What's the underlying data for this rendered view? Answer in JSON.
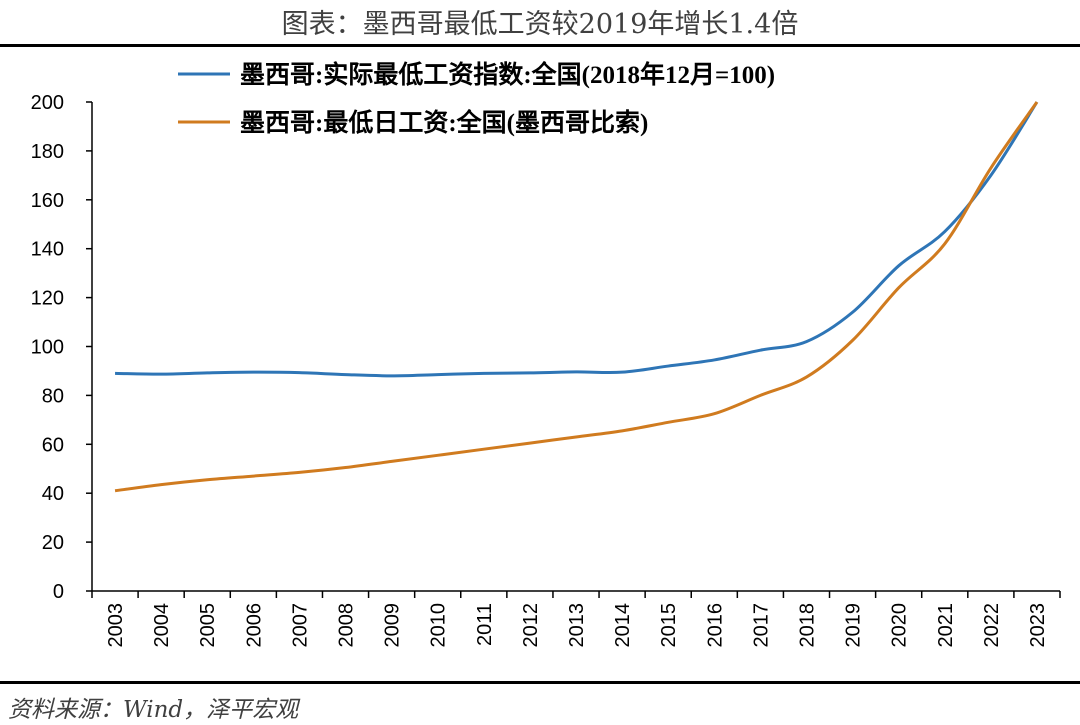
{
  "title": "图表：墨西哥最低工资较2019年增长1.4倍",
  "source": "资料来源：Wind，泽平宏观",
  "chart_data": {
    "type": "line",
    "x": [
      "2003",
      "2004",
      "2005",
      "2006",
      "2007",
      "2008",
      "2009",
      "2010",
      "2011",
      "2012",
      "2013",
      "2014",
      "2015",
      "2016",
      "2017",
      "2018",
      "2019",
      "2020",
      "2021",
      "2022",
      "2023"
    ],
    "yticks": [
      0,
      20,
      40,
      60,
      80,
      100,
      120,
      140,
      160,
      180,
      200
    ],
    "ylim": [
      0,
      200
    ],
    "legend_position": "top",
    "grid": false,
    "series": [
      {
        "name": "墨西哥:实际最低工资指数:全国(2018年12月=100)",
        "color": "#2e75b6",
        "values": [
          [
            2003,
            89
          ],
          [
            2004,
            88.7
          ],
          [
            2005,
            89.2
          ],
          [
            2006,
            89.5
          ],
          [
            2007,
            89.3
          ],
          [
            2008,
            88.5
          ],
          [
            2009,
            88
          ],
          [
            2010,
            88.5
          ],
          [
            2011,
            89
          ],
          [
            2012,
            89.2
          ],
          [
            2013,
            89.6
          ],
          [
            2014,
            89.5
          ],
          [
            2015,
            92
          ],
          [
            2016,
            94.5
          ],
          [
            2017,
            98.5
          ],
          [
            2018,
            102
          ],
          [
            2019,
            114
          ],
          [
            2020,
            133
          ],
          [
            2021,
            147
          ],
          [
            2022,
            170
          ],
          [
            2023,
            200
          ]
        ]
      },
      {
        "name": "墨西哥:最低日工资:全国(墨西哥比索)",
        "color": "#d07b1f",
        "values": [
          [
            2003,
            41
          ],
          [
            2004,
            43.5
          ],
          [
            2005,
            45.5
          ],
          [
            2006,
            47
          ],
          [
            2007,
            48.5
          ],
          [
            2008,
            50.5
          ],
          [
            2009,
            53
          ],
          [
            2010,
            55.5
          ],
          [
            2011,
            58
          ],
          [
            2012,
            60.5
          ],
          [
            2013,
            63
          ],
          [
            2014,
            65.5
          ],
          [
            2015,
            69
          ],
          [
            2016,
            72.5
          ],
          [
            2017,
            80
          ],
          [
            2018,
            87.5
          ],
          [
            2019,
            102.5
          ],
          [
            2020,
            124
          ],
          [
            2021,
            142
          ],
          [
            2022,
            173
          ],
          [
            2023,
            200
          ]
        ]
      }
    ]
  }
}
